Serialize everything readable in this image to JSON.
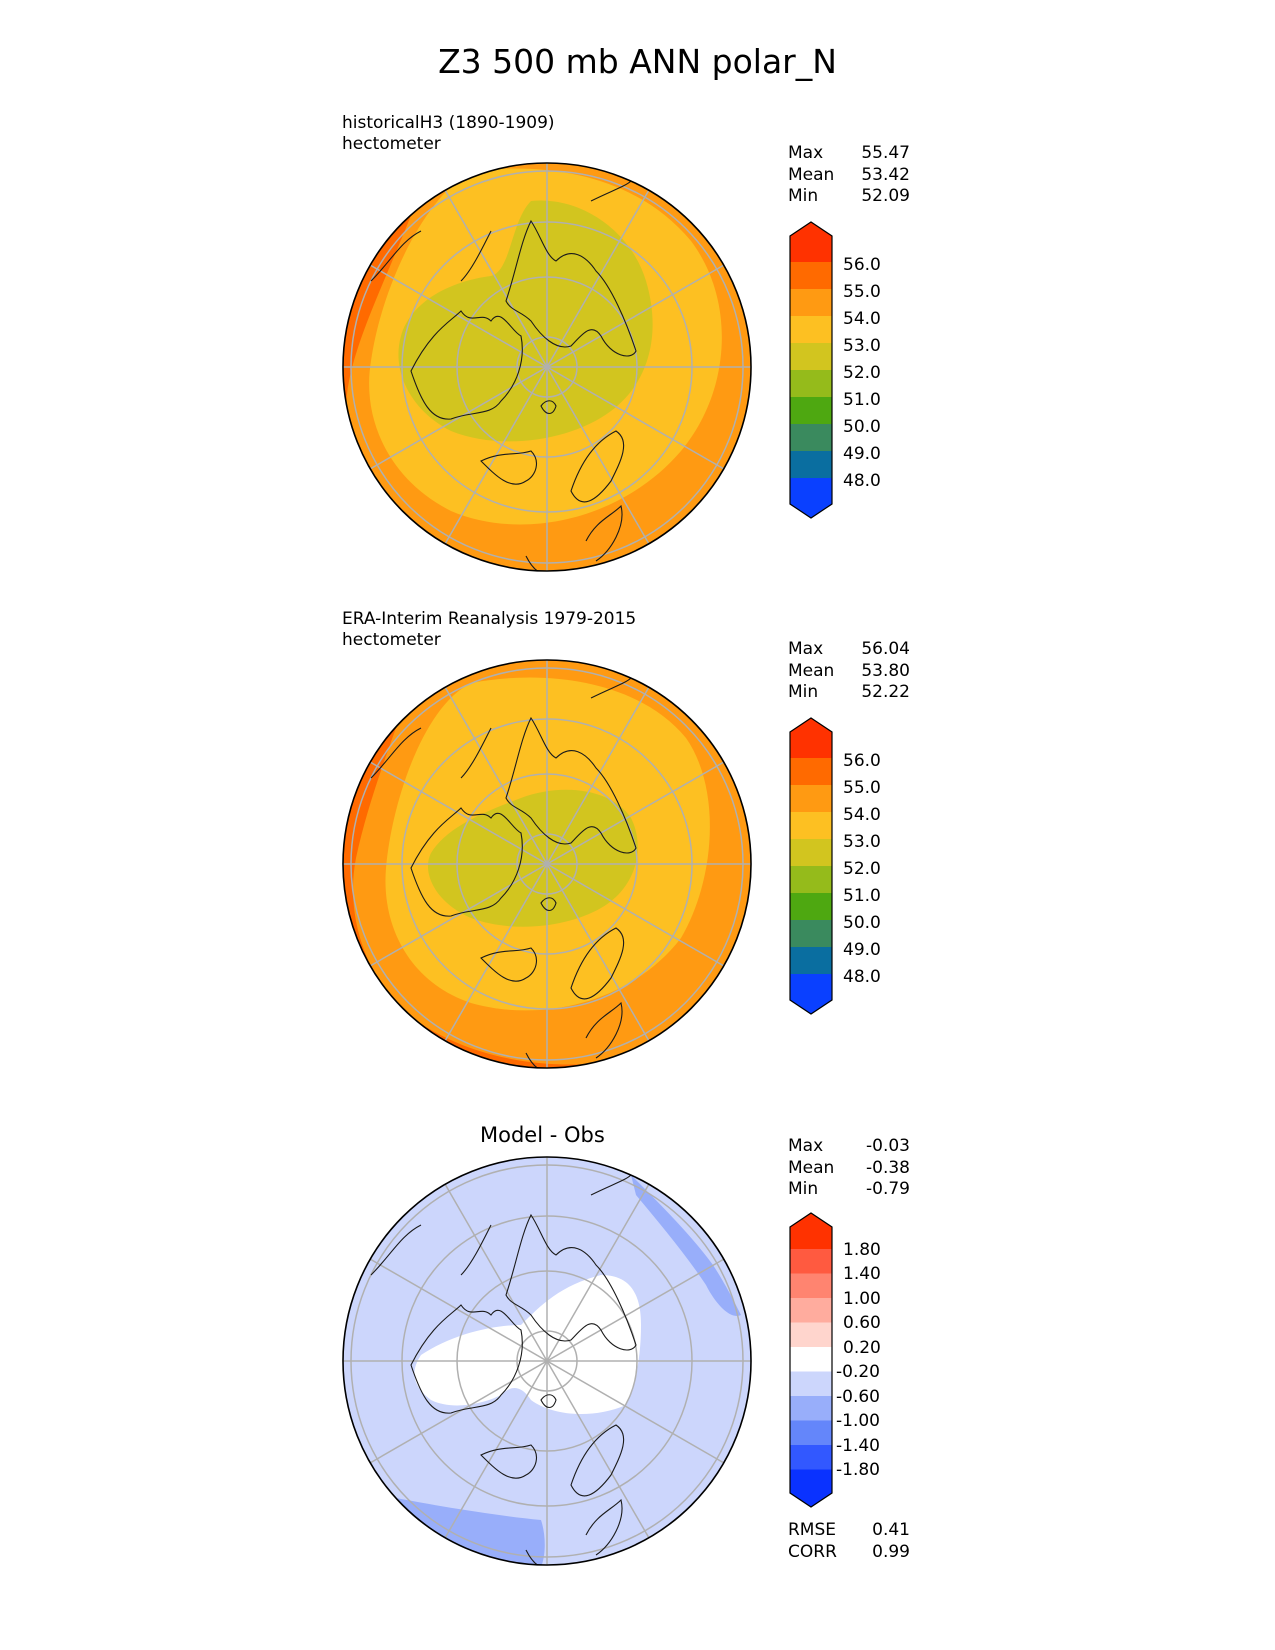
{
  "title": "Z3 500 mb ANN polar_N",
  "panels": [
    {
      "id": "test",
      "line1": "historicalH3 (1890-1909)",
      "line2": "hectometer",
      "stats": [
        {
          "label": "Max",
          "value": "55.47"
        },
        {
          "label": "Mean",
          "value": "53.42"
        },
        {
          "label": "Min",
          "value": "52.09"
        }
      ]
    },
    {
      "id": "ref",
      "line1": "ERA-Interim Reanalysis 1979-2015",
      "line2": "hectometer",
      "stats": [
        {
          "label": "Max",
          "value": "56.04"
        },
        {
          "label": "Mean",
          "value": "53.80"
        },
        {
          "label": "Min",
          "value": "52.22"
        }
      ]
    },
    {
      "id": "diff",
      "title": "Model - Obs",
      "stats": [
        {
          "label": "Max",
          "value": "-0.03"
        },
        {
          "label": "Mean",
          "value": "-0.38"
        },
        {
          "label": "Min",
          "value": "-0.79"
        }
      ],
      "metrics": [
        {
          "label": "RMSE",
          "value": "0.41"
        },
        {
          "label": "CORR",
          "value": "0.99"
        }
      ]
    }
  ],
  "colorbars": {
    "field": {
      "labels": [
        "56.0",
        "55.0",
        "54.0",
        "53.0",
        "52.0",
        "51.0",
        "50.0",
        "49.0",
        "48.0"
      ],
      "colors": [
        "#ff3200",
        "#ff6a00",
        "#ff9a12",
        "#fdc022",
        "#d2c51f",
        "#95bb1b",
        "#4ea811",
        "#3a8a5e",
        "#0a6ea0",
        "#0a40ff"
      ]
    },
    "diff": {
      "labels": [
        "1.80",
        "1.40",
        "1.00",
        "0.60",
        "0.20",
        "-0.20",
        "-0.60",
        "-1.00",
        "-1.40",
        "-1.80"
      ],
      "colors": [
        "#ff3200",
        "#ff5a40",
        "#ff8470",
        "#ffac9e",
        "#ffd5cd",
        "#ffffff",
        "#ccd6fc",
        "#98aefa",
        "#6486fa",
        "#3258ff",
        "#0a32ff"
      ]
    }
  }
}
